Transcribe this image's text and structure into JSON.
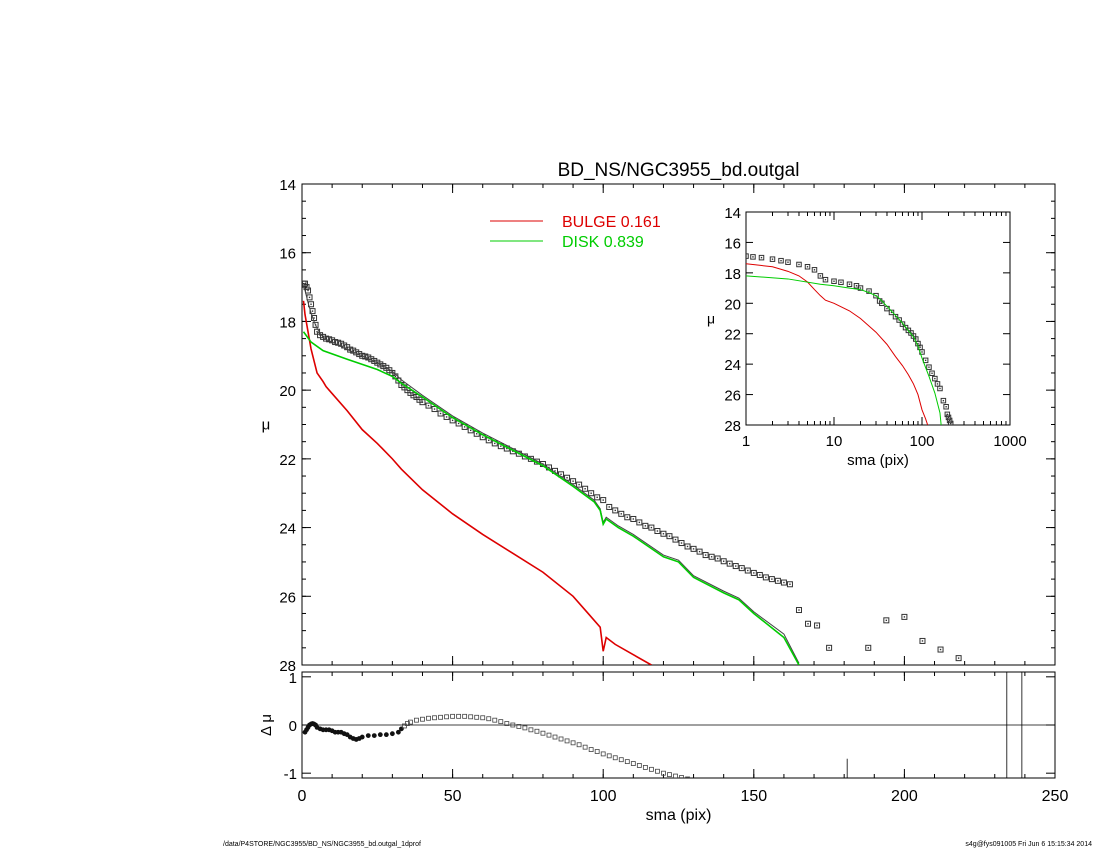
{
  "chart_data": [
    {
      "panel": "main",
      "type": "line",
      "title": "BD_NS/NGC3955_bd.outgal",
      "ylabel": "μ",
      "xlim": [
        0,
        250
      ],
      "ylim": [
        28,
        14
      ],
      "y_ticks": [
        14,
        16,
        18,
        20,
        22,
        24,
        26,
        28
      ],
      "x_ticks": [
        0,
        50,
        100,
        150,
        200,
        250
      ],
      "legend": [
        {
          "label": "BULGE  0.161",
          "color": "#dd0000"
        },
        {
          "label": "DISK  0.839",
          "color": "#00cc00"
        }
      ],
      "series": [
        {
          "name": "BULGE",
          "color": "#dd0000",
          "x": [
            0.5,
            1,
            3,
            5,
            7,
            8,
            10,
            15,
            20,
            25,
            30,
            33,
            40,
            50,
            60,
            70,
            80,
            90,
            95,
            99,
            100,
            101,
            104,
            110,
            116
          ],
          "y": [
            17.4,
            17.8,
            18.8,
            19.5,
            19.75,
            19.9,
            20.1,
            20.6,
            21.15,
            21.55,
            22.0,
            22.3,
            22.9,
            23.6,
            24.2,
            24.75,
            25.3,
            26.0,
            26.5,
            26.9,
            27.6,
            27.2,
            27.4,
            27.7,
            28.0
          ]
        },
        {
          "name": "DISK",
          "color": "#00cc00",
          "x": [
            0.5,
            3,
            7,
            15,
            25,
            30,
            33,
            40,
            50,
            60,
            70,
            80,
            90,
            97,
            99,
            100,
            101,
            105,
            110,
            120,
            125,
            130,
            140,
            145,
            150,
            160,
            165
          ],
          "y": [
            18.3,
            18.6,
            18.85,
            19.1,
            19.4,
            19.6,
            19.8,
            20.2,
            20.8,
            21.3,
            21.75,
            22.2,
            22.8,
            23.25,
            23.5,
            23.9,
            23.75,
            24.0,
            24.25,
            24.85,
            25.0,
            25.45,
            25.9,
            26.1,
            26.5,
            27.2,
            28.0
          ]
        }
      ],
      "model_total": {
        "x": [
          0.5,
          1,
          2,
          3,
          4,
          5,
          6,
          7,
          8,
          10,
          15,
          20,
          25,
          30,
          33,
          40,
          50,
          60,
          70,
          80,
          90,
          97,
          99,
          100,
          101,
          105,
          110,
          120,
          125,
          130,
          140,
          145,
          150,
          160,
          165
        ],
        "y": [
          16.95,
          17.1,
          17.45,
          17.75,
          18.0,
          18.2,
          18.35,
          18.45,
          18.52,
          18.6,
          18.82,
          19.0,
          19.2,
          19.45,
          19.7,
          20.15,
          20.75,
          21.25,
          21.7,
          22.15,
          22.75,
          23.2,
          23.45,
          23.85,
          23.7,
          23.95,
          24.2,
          24.8,
          24.95,
          25.4,
          25.85,
          26.05,
          26.45,
          27.1,
          27.95
        ]
      },
      "data_points": {
        "x": [
          0.5,
          1,
          1.5,
          2,
          2.5,
          3,
          3.5,
          4,
          4.5,
          5,
          6,
          7,
          8,
          9,
          10,
          11,
          12,
          13,
          14,
          15,
          16,
          17,
          18,
          19,
          20,
          21,
          22,
          23,
          24,
          25,
          26,
          27,
          28,
          29,
          30,
          31,
          32,
          33,
          34,
          35,
          36,
          37,
          38,
          39,
          40,
          42,
          44,
          46,
          48,
          50,
          52,
          54,
          56,
          58,
          60,
          62,
          64,
          66,
          68,
          70,
          72,
          74,
          76,
          78,
          80,
          82,
          84,
          86,
          88,
          90,
          92,
          94,
          96,
          98,
          100,
          102,
          104,
          106,
          108,
          110,
          112,
          114,
          116,
          118,
          120,
          122,
          124,
          126,
          128,
          130,
          132,
          134,
          136,
          138,
          140,
          142,
          144,
          146,
          148,
          150,
          152,
          154,
          156,
          158,
          160,
          162,
          165,
          168,
          171,
          175,
          188,
          194,
          200,
          206,
          212,
          218
        ],
        "y": [
          16.9,
          16.9,
          17.0,
          17.1,
          17.3,
          17.5,
          17.7,
          17.9,
          18.1,
          18.3,
          18.4,
          18.45,
          18.5,
          18.52,
          18.55,
          18.6,
          18.62,
          18.65,
          18.7,
          18.75,
          18.82,
          18.85,
          18.9,
          18.95,
          19.0,
          19.02,
          19.05,
          19.1,
          19.15,
          19.2,
          19.25,
          19.3,
          19.35,
          19.42,
          19.5,
          19.6,
          19.72,
          19.85,
          19.92,
          20.0,
          20.08,
          20.15,
          20.2,
          20.28,
          20.35,
          20.45,
          20.55,
          20.68,
          20.78,
          20.88,
          20.97,
          21.07,
          21.17,
          21.27,
          21.37,
          21.46,
          21.55,
          21.63,
          21.7,
          21.78,
          21.85,
          21.93,
          22.0,
          22.08,
          22.15,
          22.25,
          22.35,
          22.45,
          22.55,
          22.65,
          22.75,
          22.87,
          23.0,
          23.12,
          23.2,
          23.4,
          23.5,
          23.6,
          23.7,
          23.75,
          23.85,
          23.95,
          24.0,
          24.1,
          24.18,
          24.25,
          24.35,
          24.45,
          24.55,
          24.62,
          24.7,
          24.8,
          24.85,
          24.9,
          24.98,
          25.05,
          25.12,
          25.18,
          25.25,
          25.32,
          25.38,
          25.45,
          25.5,
          25.55,
          25.6,
          25.65,
          26.4,
          26.8,
          26.85,
          27.5,
          27.5,
          26.7,
          26.6,
          27.3,
          27.55,
          27.8
        ]
      }
    },
    {
      "panel": "inset",
      "type": "line",
      "xlabel": "sma (pix)",
      "ylabel": "μ",
      "x_scale": "log",
      "xlim": [
        1,
        1000
      ],
      "ylim": [
        28,
        14
      ],
      "x_ticks": [
        1,
        10,
        100,
        1000
      ],
      "y_ticks": [
        14,
        16,
        18,
        20,
        22,
        24,
        26,
        28
      ],
      "series": [
        {
          "name": "BULGE",
          "color": "#dd0000",
          "x": [
            1,
            2,
            3,
            4,
            5,
            6,
            7,
            8,
            10,
            15,
            20,
            30,
            40,
            50,
            60,
            70,
            80,
            90,
            100,
            110,
            116
          ],
          "y": [
            17.4,
            17.6,
            17.9,
            18.2,
            18.6,
            19.1,
            19.5,
            19.8,
            20.0,
            20.5,
            21.0,
            21.9,
            22.7,
            23.5,
            24.1,
            24.7,
            25.3,
            26.0,
            27.0,
            27.6,
            28.0
          ]
        },
        {
          "name": "DISK",
          "color": "#00cc00",
          "x": [
            1,
            3,
            7,
            10,
            15,
            20,
            25,
            30,
            33,
            40,
            50,
            60,
            70,
            80,
            90,
            100,
            120,
            140,
            160,
            165
          ],
          "y": [
            18.2,
            18.4,
            18.75,
            18.85,
            19.0,
            19.1,
            19.3,
            19.5,
            19.7,
            20.2,
            20.8,
            21.3,
            21.8,
            22.2,
            22.8,
            23.6,
            24.8,
            25.9,
            27.2,
            28.0
          ]
        }
      ],
      "data_points": {
        "x": [
          1,
          1.2,
          1.5,
          2,
          2.5,
          3,
          4,
          5,
          6,
          7,
          8,
          10,
          12,
          15,
          18,
          20,
          25,
          30,
          33,
          35,
          40,
          45,
          50,
          55,
          60,
          65,
          70,
          75,
          80,
          85,
          90,
          95,
          100,
          110,
          120,
          130,
          140,
          150,
          160,
          175,
          188,
          194,
          200,
          206,
          212
        ],
        "y": [
          16.9,
          16.95,
          17.0,
          17.1,
          17.2,
          17.3,
          17.45,
          17.6,
          17.8,
          18.2,
          18.45,
          18.55,
          18.62,
          18.75,
          18.85,
          19.0,
          19.2,
          19.5,
          19.85,
          20.0,
          20.35,
          20.6,
          20.88,
          21.1,
          21.37,
          21.6,
          21.78,
          21.95,
          22.15,
          22.35,
          22.65,
          22.9,
          23.2,
          23.75,
          24.2,
          24.6,
          24.95,
          25.3,
          25.6,
          26.4,
          26.8,
          27.3,
          27.5,
          27.7,
          27.9
        ]
      }
    },
    {
      "panel": "residual",
      "type": "scatter",
      "xlabel": "sma (pix)",
      "ylabel": "Δ μ",
      "xlim": [
        0,
        250
      ],
      "ylim": [
        -1.1,
        1.1
      ],
      "y_ticks": [
        1,
        0,
        -1
      ],
      "x_ticks": [
        0,
        50,
        100,
        150,
        200,
        250
      ],
      "zero_line": true,
      "marker_lines": [
        181,
        234,
        239
      ],
      "points": {
        "x": [
          1,
          1.5,
          2,
          2.5,
          3,
          3.5,
          4,
          4.5,
          5,
          6,
          7,
          8,
          9,
          10,
          11,
          12,
          13,
          14,
          15,
          16,
          17,
          18,
          19,
          20,
          22,
          24,
          26,
          28,
          30,
          32,
          33,
          34,
          35,
          36,
          38,
          40,
          42,
          44,
          46,
          48,
          50,
          52,
          54,
          56,
          58,
          60,
          62,
          64,
          66,
          68,
          70,
          72,
          74,
          76,
          78,
          80,
          82,
          84,
          86,
          88,
          90,
          92,
          94,
          96,
          98,
          100,
          102,
          104,
          106,
          108,
          110,
          112,
          114,
          116,
          118,
          120,
          122,
          124,
          126,
          128
        ],
        "y": [
          -0.15,
          -0.1,
          -0.05,
          0.0,
          0.02,
          0.03,
          0.02,
          0.0,
          -0.05,
          -0.08,
          -0.1,
          -0.1,
          -0.1,
          -0.12,
          -0.15,
          -0.15,
          -0.15,
          -0.18,
          -0.2,
          -0.25,
          -0.28,
          -0.3,
          -0.28,
          -0.25,
          -0.22,
          -0.22,
          -0.2,
          -0.2,
          -0.18,
          -0.15,
          -0.08,
          -0.02,
          0.03,
          0.06,
          0.1,
          0.12,
          0.14,
          0.15,
          0.16,
          0.17,
          0.18,
          0.18,
          0.18,
          0.17,
          0.16,
          0.15,
          0.13,
          0.1,
          0.07,
          0.03,
          0.0,
          -0.03,
          -0.06,
          -0.1,
          -0.13,
          -0.17,
          -0.21,
          -0.25,
          -0.29,
          -0.33,
          -0.37,
          -0.41,
          -0.46,
          -0.51,
          -0.55,
          -0.6,
          -0.64,
          -0.68,
          -0.72,
          -0.76,
          -0.8,
          -0.84,
          -0.88,
          -0.92,
          -0.96,
          -1.0,
          -1.03,
          -1.06,
          -1.09,
          -1.12
        ]
      }
    }
  ],
  "footer": {
    "left": "/data/P4STORE/NGC3955/BD_NS/NGC3955_bd.outgal_1dprof",
    "right": "s4g@fys091005  Fri Jun  6 15:15:34 2014"
  }
}
